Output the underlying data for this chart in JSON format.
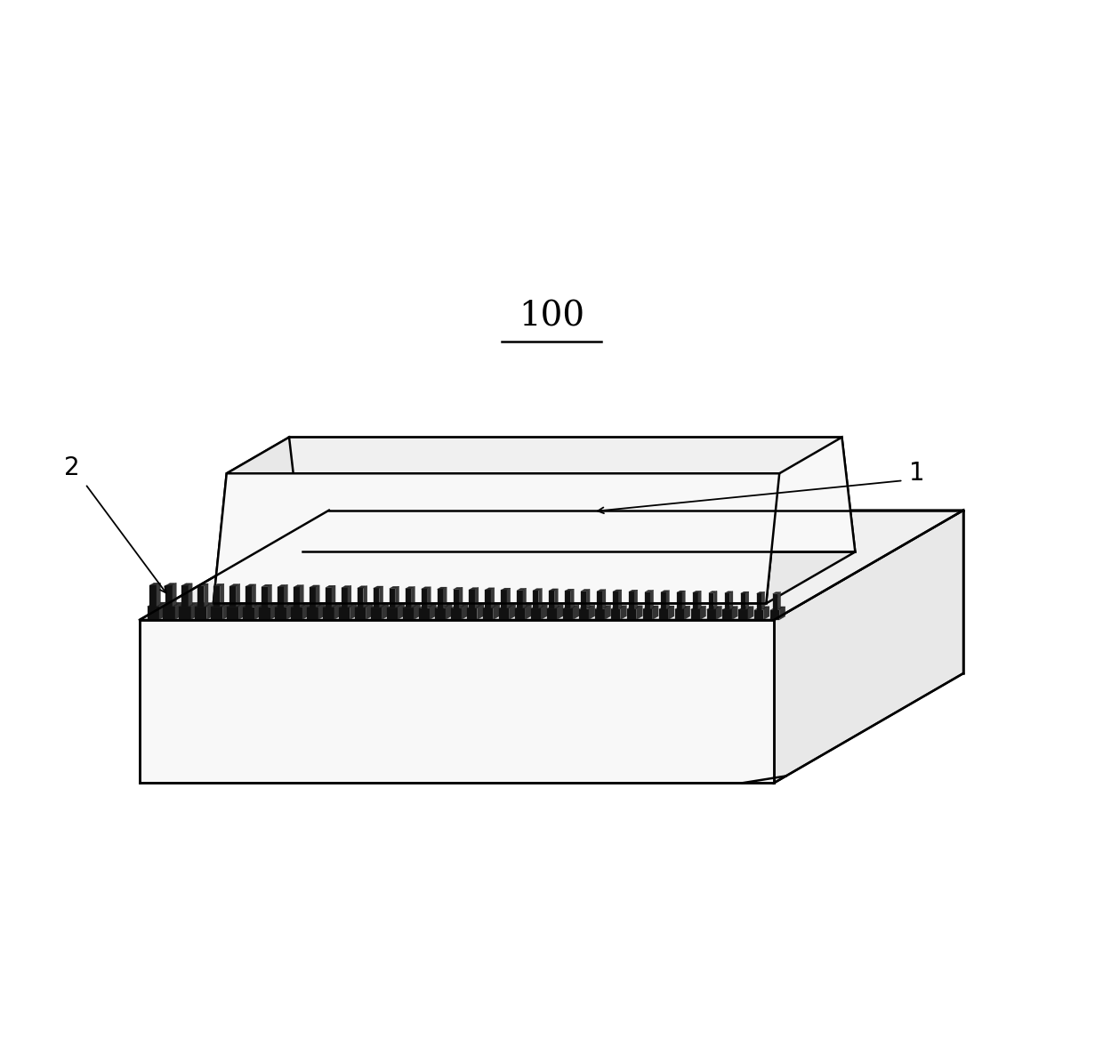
{
  "title": "100",
  "label_1": "1",
  "label_2": "2",
  "bg_color": "#ffffff",
  "line_color": "#000000",
  "face_color_front": "#f8f8f8",
  "face_color_top": "#f0f0f0",
  "face_color_right": "#e8e8e8",
  "dark_fill": "#111111",
  "num_terminals": 40,
  "fig_width": 12.4,
  "fig_height": 11.85,
  "dpi": 100
}
